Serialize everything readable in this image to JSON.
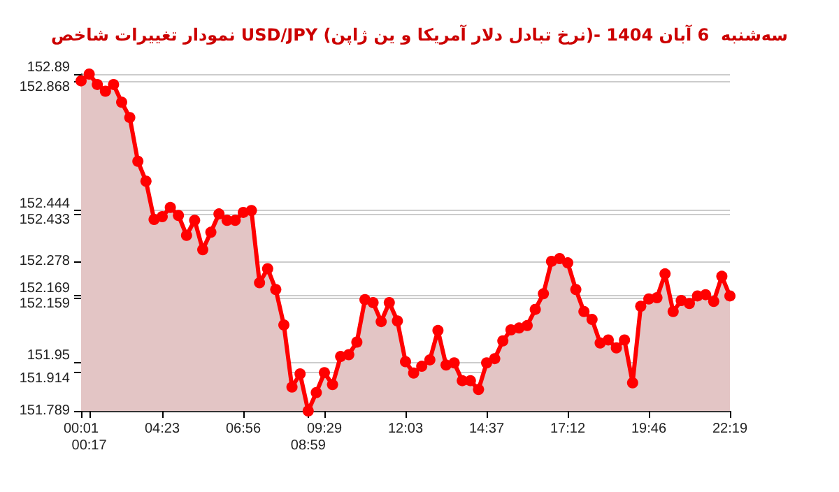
{
  "chart_data": {
    "type": "area",
    "title": "نمودار تغییرات شاخص USD/JPY (نرخ تبادل دلار آمریکا و ین ژاپن)- سه‌شنبه  6 آبان 1404",
    "categories": [
      "00:01",
      "00:17",
      null,
      null,
      null,
      null,
      null,
      null,
      null,
      null,
      "04:23",
      null,
      null,
      null,
      null,
      null,
      null,
      null,
      null,
      null,
      "06:56",
      null,
      null,
      null,
      null,
      null,
      null,
      null,
      "08:59",
      null,
      "09:29",
      null,
      null,
      null,
      null,
      null,
      null,
      null,
      null,
      null,
      "12:03",
      null,
      null,
      null,
      null,
      null,
      null,
      null,
      null,
      null,
      "14:37",
      null,
      null,
      null,
      null,
      null,
      null,
      null,
      null,
      null,
      "17:12",
      null,
      null,
      null,
      null,
      null,
      null,
      null,
      null,
      null,
      "19:46",
      null,
      null,
      null,
      null,
      null,
      null,
      null,
      null,
      null,
      "22:19"
    ],
    "series": [
      {
        "color": "#ff0000",
        "values": [
          152.868,
          152.89,
          152.856,
          152.834,
          152.856,
          152.798,
          152.748,
          152.605,
          152.54,
          152.415,
          152.424,
          152.454,
          152.428,
          152.363,
          152.412,
          152.316,
          152.373,
          152.433,
          152.412,
          152.412,
          152.438,
          152.444,
          152.208,
          152.254,
          152.186,
          152.07,
          151.867,
          151.91,
          151.789,
          151.849,
          151.914,
          151.875,
          151.967,
          151.973,
          152.014,
          152.153,
          152.143,
          152.081,
          152.143,
          152.083,
          151.95,
          151.913,
          151.935,
          151.956,
          152.052,
          151.939,
          151.946,
          151.888,
          151.888,
          151.859,
          151.946,
          151.96,
          152.018,
          152.054,
          152.06,
          152.068,
          152.121,
          152.172,
          152.278,
          152.287,
          152.273,
          152.186,
          152.114,
          152.088,
          152.011,
          152.021,
          151.995,
          152.021,
          151.881,
          152.131,
          152.155,
          152.159,
          152.237,
          152.114,
          152.15,
          152.14,
          152.165,
          152.169,
          152.147,
          152.229,
          152.165
        ]
      }
    ],
    "ylim": [
      151.789,
      152.89
    ],
    "yticks": [
      151.789,
      151.914,
      151.95,
      152.159,
      152.169,
      152.278,
      152.433,
      152.444,
      152.868,
      152.89
    ],
    "grid": "y",
    "marker": "circle",
    "line_style": "solid"
  }
}
